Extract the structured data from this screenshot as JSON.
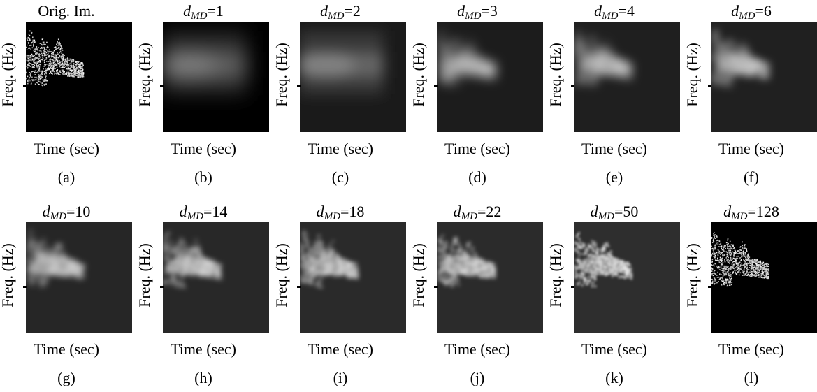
{
  "figure": {
    "panels": [
      {
        "title_plain": "Orig. Im.",
        "d_symbol": "",
        "d_sub": "",
        "d_value": "",
        "ylabel": "Freq. (Hz)",
        "xlabel": "Time (sec)",
        "label": "(a)",
        "kind": "orig",
        "background": "#000000"
      },
      {
        "title_plain": "",
        "d_symbol": "d",
        "d_sub": "MD",
        "d_value": "=1",
        "ylabel": "Freq. (Hz)",
        "xlabel": "Time (sec)",
        "label": "(b)",
        "kind": "blur",
        "level": 1,
        "background": "#000000"
      },
      {
        "title_plain": "",
        "d_symbol": "d",
        "d_sub": "MD",
        "d_value": "=2",
        "ylabel": "Freq. (Hz)",
        "xlabel": "Time (sec)",
        "label": "(c)",
        "kind": "blur",
        "level": 2,
        "background": "#1a1a1a"
      },
      {
        "title_plain": "",
        "d_symbol": "d",
        "d_sub": "MD",
        "d_value": "=3",
        "ylabel": "Freq. (Hz)",
        "xlabel": "Time (sec)",
        "label": "(d)",
        "kind": "blur",
        "level": 3,
        "background": "#1c1c1c"
      },
      {
        "title_plain": "",
        "d_symbol": "d",
        "d_sub": "MD",
        "d_value": "=4",
        "ylabel": "Freq. (Hz)",
        "xlabel": "Time (sec)",
        "label": "(e)",
        "kind": "blur",
        "level": 4,
        "background": "#1f1f1f"
      },
      {
        "title_plain": "",
        "d_symbol": "d",
        "d_sub": "MD",
        "d_value": "=6",
        "ylabel": "Freq. (Hz)",
        "xlabel": "Time (sec)",
        "label": "(f)",
        "kind": "blur",
        "level": 6,
        "background": "#202020"
      },
      {
        "title_plain": "",
        "d_symbol": "d",
        "d_sub": "MD",
        "d_value": "=10",
        "ylabel": "Freq. (Hz)",
        "xlabel": "Time (sec)",
        "label": "(g)",
        "kind": "blur",
        "level": 10,
        "background": "#262626"
      },
      {
        "title_plain": "",
        "d_symbol": "d",
        "d_sub": "MD",
        "d_value": "=14",
        "ylabel": "Freq. (Hz)",
        "xlabel": "Time (sec)",
        "label": "(h)",
        "kind": "blur",
        "level": 14,
        "background": "#282828"
      },
      {
        "title_plain": "",
        "d_symbol": "d",
        "d_sub": "MD",
        "d_value": "=18",
        "ylabel": "Freq. (Hz)",
        "xlabel": "Time (sec)",
        "label": "(i)",
        "kind": "blur",
        "level": 18,
        "background": "#2a2a2a"
      },
      {
        "title_plain": "",
        "d_symbol": "d",
        "d_sub": "MD",
        "d_value": "=22",
        "ylabel": "Freq. (Hz)",
        "xlabel": "Time (sec)",
        "label": "(j)",
        "kind": "blur",
        "level": 22,
        "background": "#2b2b2b"
      },
      {
        "title_plain": "",
        "d_symbol": "d",
        "d_sub": "MD",
        "d_value": "=50",
        "ylabel": "Freq. (Hz)",
        "xlabel": "Time (sec)",
        "label": "(k)",
        "kind": "blur",
        "level": 50,
        "background": "#2e2e2e"
      },
      {
        "title_plain": "",
        "d_symbol": "d",
        "d_sub": "MD",
        "d_value": "=128",
        "ylabel": "Freq. (Hz)",
        "xlabel": "Time (sec)",
        "label": "(l)",
        "kind": "orig",
        "level": 128,
        "background": "#000000"
      }
    ]
  }
}
